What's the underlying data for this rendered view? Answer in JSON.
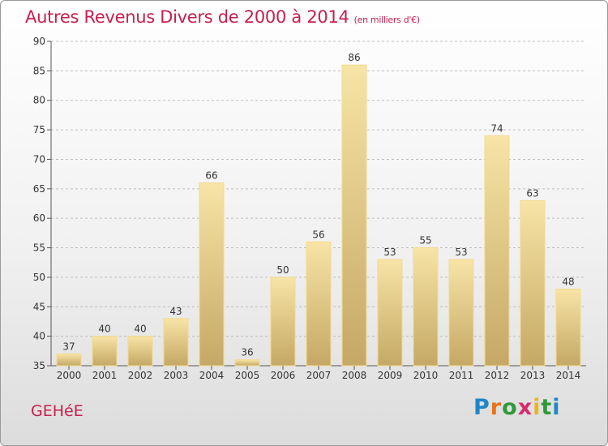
{
  "title": "Autres Revenus Divers de 2000 à 2014",
  "subtitle": "(en milliers d'€)",
  "commune": "GEHéE",
  "logo": {
    "letters": [
      {
        "char": "P",
        "color": "#1f86c8"
      },
      {
        "char": "r",
        "color": "#e8731d"
      },
      {
        "char": "o",
        "color": "#2f9a3a"
      },
      {
        "char": "x",
        "color": "#d42d6e"
      },
      {
        "char": "i",
        "color": "#e8b51d"
      },
      {
        "char": "t",
        "color": "#2f9a3a"
      },
      {
        "char": "i",
        "color": "#1f86c8"
      }
    ]
  },
  "colors": {
    "title": "#c6204f",
    "bar_light": "#f6e1a0",
    "bar_dark": "#c6a967",
    "gridline": "#bdbdbd"
  },
  "chart_data": {
    "type": "bar",
    "categories": [
      "2000",
      "2001",
      "2002",
      "2003",
      "2004",
      "2005",
      "2006",
      "2007",
      "2008",
      "2009",
      "2010",
      "2011",
      "2012",
      "2013",
      "2014"
    ],
    "values": [
      37,
      40,
      40,
      43,
      66,
      36,
      50,
      56,
      86,
      53,
      55,
      53,
      74,
      63,
      48
    ],
    "ylim": [
      35,
      90
    ],
    "yticks": [
      35,
      40,
      45,
      50,
      55,
      60,
      65,
      70,
      75,
      80,
      85,
      90
    ],
    "grid": "horizontal dashed",
    "data_labels": true
  }
}
